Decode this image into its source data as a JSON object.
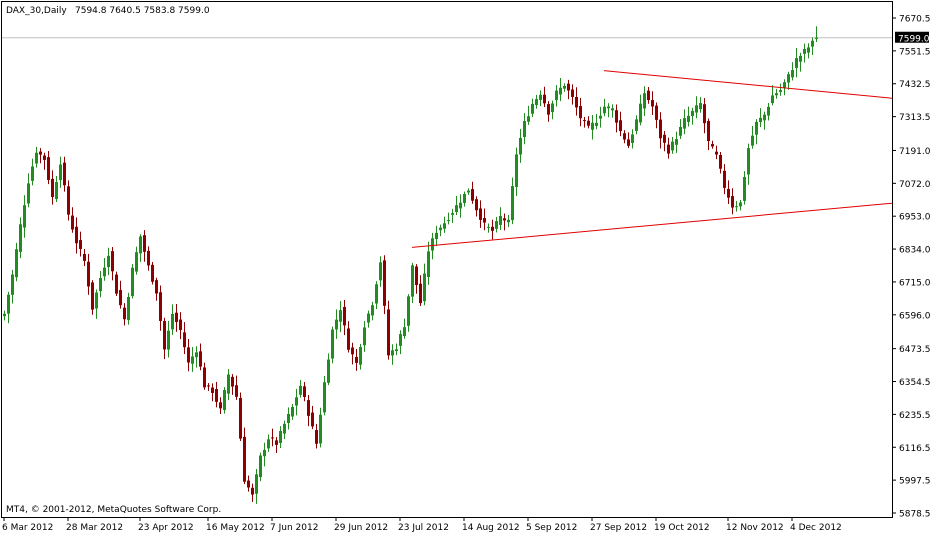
{
  "header": {
    "symbol": "DAX_30,Daily",
    "ohlc": "7594.8 7640.5 7583.8 7599.0"
  },
  "copyright": "MT4, © 2001-2012, MetaQuotes Software Corp.",
  "current_price_label": "7599.0",
  "colors": {
    "bull": "#228B22",
    "bear": "#8B0000",
    "trendline": "#E00000",
    "frame": "#000000",
    "grid": "#C0C0C0",
    "price_tag_bg": "#000000",
    "price_tag_text": "#ffffff"
  },
  "chart_data": {
    "type": "candlestick",
    "title": "DAX_30,Daily",
    "y_axis": {
      "position": "right",
      "ylim": [
        5820,
        7730
      ],
      "ticks": [
        7670.5,
        7551.5,
        7432.5,
        7313.5,
        7191.0,
        7072.0,
        6953.0,
        6834.0,
        6715.0,
        6596.0,
        6473.5,
        6354.5,
        6235.5,
        6116.5,
        5997.5,
        5878.5
      ],
      "tick_labels": [
        "7670.5",
        "7551.5",
        "7432.5",
        "7313.5",
        "7191.0",
        "7072.0",
        "6953.0",
        "6834.0",
        "6715.0",
        "6596.0",
        "6473.5",
        "6354.5",
        "6235.5",
        "6116.5",
        "5997.5",
        "5878.5"
      ]
    },
    "x_axis": {
      "tick_labels": [
        "6 Mar 2012",
        "28 Mar 2012",
        "23 Apr 2012",
        "16 May 2012",
        "7 Jun 2012",
        "29 Jun 2012",
        "23 Jul 2012",
        "14 Aug 2012",
        "5 Sep 2012",
        "27 Sep 2012",
        "19 Oct 2012",
        "12 Nov 2012",
        "4 Dec 2012"
      ],
      "tick_bar_index": [
        0,
        16,
        34,
        51,
        67,
        83,
        99,
        115,
        131,
        147,
        163,
        181,
        197
      ]
    },
    "bar_spacing_bars": 209,
    "current_price": 7599.0,
    "anchors": [
      [
        0,
        6600
      ],
      [
        2,
        6740
      ],
      [
        4,
        6920
      ],
      [
        6,
        7080
      ],
      [
        8,
        7190
      ],
      [
        10,
        7160
      ],
      [
        12,
        7020
      ],
      [
        14,
        7150
      ],
      [
        16,
        6960
      ],
      [
        18,
        6860
      ],
      [
        20,
        6790
      ],
      [
        22,
        6620
      ],
      [
        24,
        6730
      ],
      [
        26,
        6820
      ],
      [
        28,
        6680
      ],
      [
        30,
        6580
      ],
      [
        32,
        6760
      ],
      [
        34,
        6880
      ],
      [
        36,
        6770
      ],
      [
        38,
        6680
      ],
      [
        40,
        6470
      ],
      [
        42,
        6600
      ],
      [
        44,
        6540
      ],
      [
        46,
        6420
      ],
      [
        48,
        6470
      ],
      [
        50,
        6340
      ],
      [
        52,
        6320
      ],
      [
        54,
        6250
      ],
      [
        56,
        6380
      ],
      [
        58,
        6300
      ],
      [
        60,
        6000
      ],
      [
        62,
        5940
      ],
      [
        64,
        6080
      ],
      [
        66,
        6150
      ],
      [
        68,
        6130
      ],
      [
        70,
        6200
      ],
      [
        72,
        6260
      ],
      [
        74,
        6340
      ],
      [
        76,
        6240
      ],
      [
        78,
        6130
      ],
      [
        80,
        6350
      ],
      [
        82,
        6540
      ],
      [
        84,
        6620
      ],
      [
        86,
        6480
      ],
      [
        88,
        6420
      ],
      [
        90,
        6560
      ],
      [
        92,
        6640
      ],
      [
        94,
        6790
      ],
      [
        96,
        6450
      ],
      [
        98,
        6480
      ],
      [
        100,
        6560
      ],
      [
        102,
        6770
      ],
      [
        104,
        6640
      ],
      [
        106,
        6830
      ],
      [
        108,
        6900
      ],
      [
        110,
        6930
      ],
      [
        112,
        6970
      ],
      [
        114,
        7010
      ],
      [
        116,
        7050
      ],
      [
        118,
        6980
      ],
      [
        120,
        6920
      ],
      [
        122,
        6900
      ],
      [
        124,
        6950
      ],
      [
        126,
        6930
      ],
      [
        128,
        7180
      ],
      [
        130,
        7290
      ],
      [
        132,
        7360
      ],
      [
        134,
        7400
      ],
      [
        136,
        7330
      ],
      [
        138,
        7400
      ],
      [
        140,
        7430
      ],
      [
        142,
        7380
      ],
      [
        144,
        7310
      ],
      [
        146,
        7270
      ],
      [
        148,
        7300
      ],
      [
        150,
        7350
      ],
      [
        152,
        7340
      ],
      [
        154,
        7260
      ],
      [
        156,
        7210
      ],
      [
        158,
        7300
      ],
      [
        160,
        7400
      ],
      [
        162,
        7350
      ],
      [
        164,
        7240
      ],
      [
        166,
        7190
      ],
      [
        168,
        7240
      ],
      [
        170,
        7300
      ],
      [
        172,
        7330
      ],
      [
        174,
        7360
      ],
      [
        176,
        7220
      ],
      [
        178,
        7170
      ],
      [
        180,
        7060
      ],
      [
        182,
        6990
      ],
      [
        184,
        7000
      ],
      [
        186,
        7200
      ],
      [
        188,
        7290
      ],
      [
        190,
        7320
      ],
      [
        192,
        7390
      ],
      [
        194,
        7410
      ],
      [
        196,
        7460
      ],
      [
        198,
        7520
      ],
      [
        200,
        7550
      ],
      [
        202,
        7580
      ],
      [
        203,
        7599
      ]
    ],
    "trendlines": [
      {
        "name": "upper",
        "from": {
          "bar": 150,
          "price": 7480
        },
        "to": {
          "bar": 234,
          "price": 7380
        }
      },
      {
        "name": "lower",
        "from": {
          "bar": 102,
          "price": 6840
        },
        "to": {
          "bar": 234,
          "price": 7000
        }
      }
    ],
    "grid": false,
    "legend": "none"
  }
}
